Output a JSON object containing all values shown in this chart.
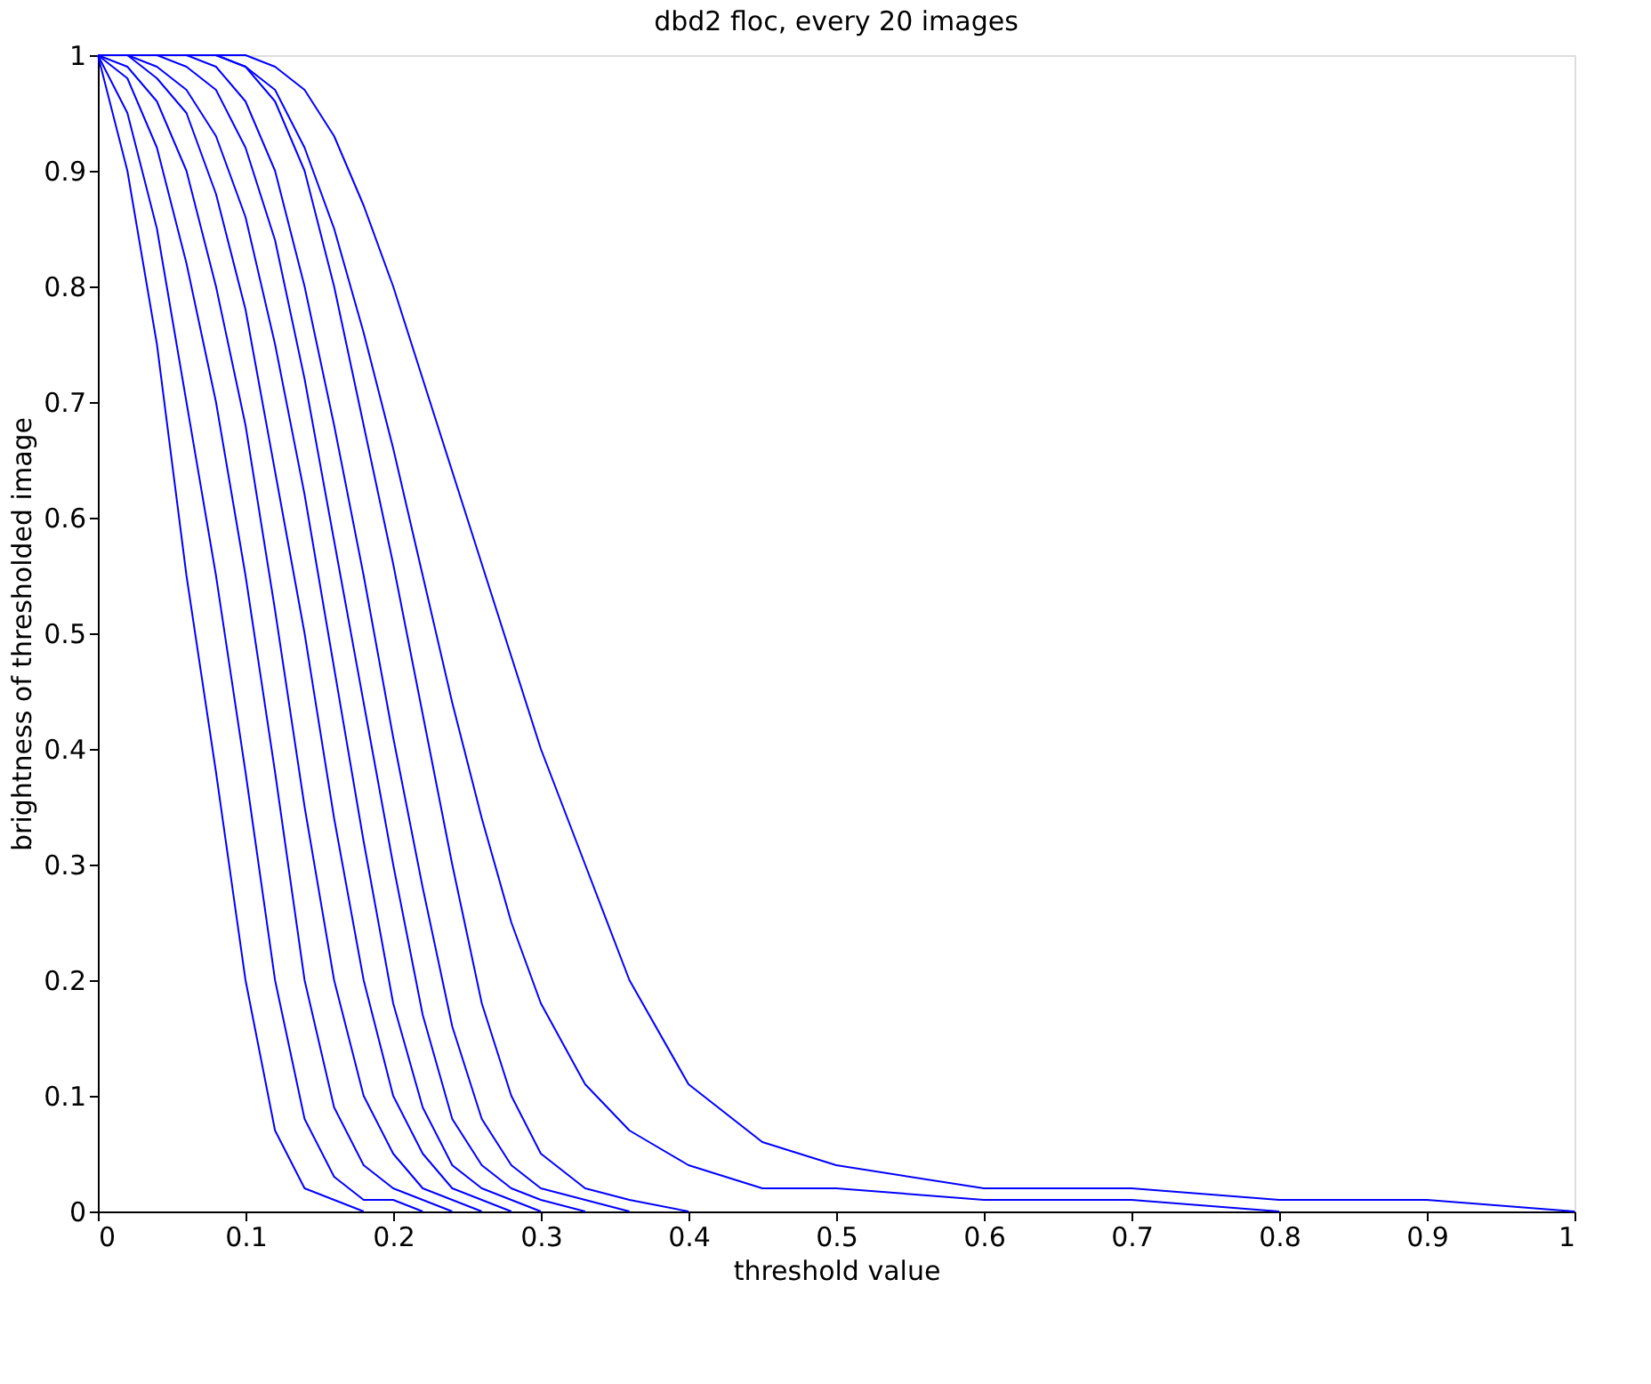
{
  "chart_data": {
    "type": "line",
    "title": "dbd2 floc, every 20 images",
    "xlabel": "threshold value",
    "ylabel": "brightness of thresholded image",
    "xlim": [
      0,
      1
    ],
    "xticks": [
      0,
      0.1,
      0.2,
      0.3,
      0.4,
      0.5,
      0.6,
      0.7,
      0.8,
      0.9,
      1
    ],
    "ylim": [
      0,
      1
    ],
    "yticks": [
      0,
      0.1,
      0.2,
      0.3,
      0.4,
      0.5,
      0.6,
      0.7,
      0.8,
      0.9,
      1
    ],
    "legend": false,
    "grid": false,
    "series": [
      {
        "color": "#0000ff",
        "x": [
          0,
          0.02,
          0.04,
          0.06,
          0.08,
          0.1,
          0.12,
          0.14,
          0.16,
          0.18
        ],
        "values": [
          1,
          0.9,
          0.75,
          0.55,
          0.38,
          0.2,
          0.07,
          0.02,
          0.01,
          0
        ]
      },
      {
        "color": "#0000ff",
        "x": [
          0,
          0.02,
          0.04,
          0.06,
          0.08,
          0.1,
          0.12,
          0.14,
          0.16,
          0.18,
          0.2,
          0.22
        ],
        "values": [
          1,
          0.95,
          0.85,
          0.7,
          0.55,
          0.38,
          0.2,
          0.08,
          0.03,
          0.01,
          0.01,
          0
        ]
      },
      {
        "color": "#0000ff",
        "x": [
          0,
          0.02,
          0.04,
          0.06,
          0.08,
          0.1,
          0.12,
          0.14,
          0.16,
          0.18,
          0.2,
          0.22,
          0.24
        ],
        "values": [
          1,
          0.98,
          0.92,
          0.82,
          0.7,
          0.55,
          0.38,
          0.2,
          0.09,
          0.04,
          0.02,
          0.01,
          0
        ]
      },
      {
        "color": "#0000ff",
        "x": [
          0,
          0.02,
          0.04,
          0.06,
          0.08,
          0.1,
          0.12,
          0.14,
          0.16,
          0.18,
          0.2,
          0.22,
          0.24,
          0.26
        ],
        "values": [
          1,
          0.99,
          0.96,
          0.9,
          0.8,
          0.68,
          0.52,
          0.35,
          0.2,
          0.1,
          0.05,
          0.02,
          0.01,
          0
        ]
      },
      {
        "color": "#0000ff",
        "x": [
          0,
          0.02,
          0.04,
          0.06,
          0.08,
          0.1,
          0.12,
          0.14,
          0.16,
          0.18,
          0.2,
          0.22,
          0.24,
          0.26,
          0.28
        ],
        "values": [
          1,
          1,
          0.98,
          0.95,
          0.88,
          0.78,
          0.64,
          0.5,
          0.34,
          0.2,
          0.1,
          0.05,
          0.02,
          0.01,
          0
        ]
      },
      {
        "color": "#0000ff",
        "x": [
          0,
          0.02,
          0.04,
          0.06,
          0.08,
          0.1,
          0.12,
          0.14,
          0.16,
          0.18,
          0.2,
          0.22,
          0.24,
          0.26,
          0.28,
          0.3
        ],
        "values": [
          1,
          1,
          0.99,
          0.97,
          0.93,
          0.86,
          0.75,
          0.62,
          0.47,
          0.32,
          0.18,
          0.09,
          0.04,
          0.02,
          0.01,
          0
        ]
      },
      {
        "color": "#0000ff",
        "x": [
          0,
          0.02,
          0.04,
          0.06,
          0.08,
          0.1,
          0.12,
          0.14,
          0.16,
          0.18,
          0.2,
          0.22,
          0.24,
          0.26,
          0.28,
          0.3,
          0.33
        ],
        "values": [
          1,
          1,
          1,
          0.99,
          0.97,
          0.92,
          0.84,
          0.72,
          0.58,
          0.44,
          0.3,
          0.17,
          0.08,
          0.04,
          0.02,
          0.01,
          0
        ]
      },
      {
        "color": "#0000ff",
        "x": [
          0,
          0.02,
          0.04,
          0.06,
          0.08,
          0.1,
          0.12,
          0.14,
          0.16,
          0.18,
          0.2,
          0.22,
          0.24,
          0.26,
          0.28,
          0.3,
          0.33,
          0.36
        ],
        "values": [
          1,
          1,
          1,
          1,
          0.99,
          0.96,
          0.9,
          0.8,
          0.68,
          0.55,
          0.41,
          0.28,
          0.16,
          0.08,
          0.04,
          0.02,
          0.01,
          0
        ]
      },
      {
        "color": "#0000ff",
        "x": [
          0,
          0.02,
          0.04,
          0.06,
          0.08,
          0.1,
          0.12,
          0.14,
          0.16,
          0.18,
          0.2,
          0.22,
          0.24,
          0.26,
          0.28,
          0.3,
          0.33,
          0.36,
          0.4
        ],
        "values": [
          1,
          1,
          1,
          1,
          1,
          0.99,
          0.96,
          0.9,
          0.8,
          0.68,
          0.56,
          0.43,
          0.3,
          0.18,
          0.1,
          0.05,
          0.02,
          0.01,
          0
        ]
      },
      {
        "color": "#0000ff",
        "x": [
          0,
          0.02,
          0.04,
          0.06,
          0.08,
          0.1,
          0.12,
          0.14,
          0.16,
          0.18,
          0.2,
          0.22,
          0.24,
          0.26,
          0.28,
          0.3,
          0.33,
          0.36,
          0.4,
          0.45,
          0.5,
          0.6,
          0.7,
          0.8
        ],
        "values": [
          1,
          1,
          1,
          1,
          1,
          0.99,
          0.97,
          0.92,
          0.85,
          0.76,
          0.66,
          0.55,
          0.44,
          0.34,
          0.25,
          0.18,
          0.11,
          0.07,
          0.04,
          0.02,
          0.02,
          0.01,
          0.01,
          0
        ]
      },
      {
        "color": "#0000ff",
        "x": [
          0,
          0.02,
          0.04,
          0.06,
          0.08,
          0.1,
          0.12,
          0.14,
          0.16,
          0.18,
          0.2,
          0.22,
          0.24,
          0.26,
          0.28,
          0.3,
          0.33,
          0.36,
          0.4,
          0.45,
          0.5,
          0.6,
          0.7,
          0.8,
          0.9,
          1.0
        ],
        "values": [
          1,
          1,
          1,
          1,
          1,
          1,
          0.99,
          0.97,
          0.93,
          0.87,
          0.8,
          0.72,
          0.64,
          0.56,
          0.48,
          0.4,
          0.3,
          0.2,
          0.11,
          0.06,
          0.04,
          0.02,
          0.02,
          0.01,
          0.01,
          0
        ]
      }
    ]
  }
}
